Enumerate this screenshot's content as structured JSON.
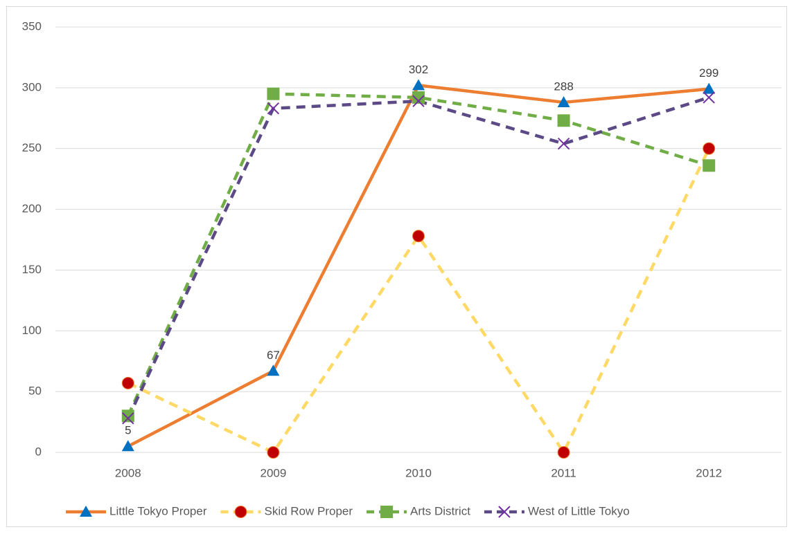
{
  "chart_data": {
    "type": "line",
    "categories": [
      "2008",
      "2009",
      "2010",
      "2011",
      "2012"
    ],
    "series": [
      {
        "name": "Little Tokyo Proper",
        "color": "#ed7d31",
        "dashed": false,
        "marker": "triangle",
        "marker_color": "#0070c0",
        "data_labels": true,
        "values": [
          5,
          67,
          302,
          288,
          299
        ]
      },
      {
        "name": "Skid Row Proper",
        "color": "#ffd966",
        "dashed": true,
        "marker": "circle",
        "marker_color": "#c00000",
        "data_labels": false,
        "values": [
          57,
          0,
          178,
          0,
          250
        ]
      },
      {
        "name": "Arts District",
        "color": "#70ad47",
        "dashed": true,
        "marker": "square",
        "marker_color": "#70ad47",
        "data_labels": false,
        "values": [
          30,
          295,
          292,
          273,
          236
        ]
      },
      {
        "name": "West of Little Tokyo",
        "color": "#5b4a86",
        "dashed": true,
        "marker": "x",
        "marker_color": "#7030a0",
        "data_labels": false,
        "values": [
          28,
          283,
          289,
          254,
          292
        ]
      }
    ],
    "ylim": [
      0,
      350
    ],
    "yticks": [
      0,
      50,
      100,
      150,
      200,
      250,
      300,
      350
    ],
    "grid": true,
    "legend": "bottom"
  }
}
